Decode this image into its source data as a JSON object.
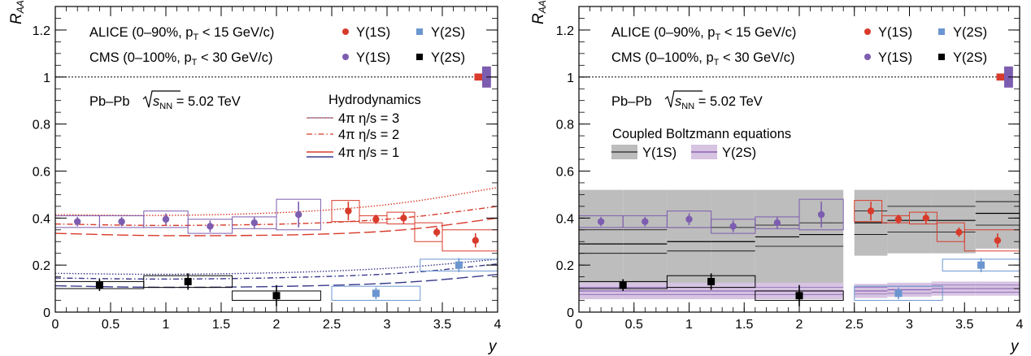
{
  "colors": {
    "alice_1s": "#d83b2b",
    "alice_2s": "#6b96d0",
    "cms_1s": "#7d5db0",
    "cms_2s": "#000000",
    "band_1s": "#bdbdbd",
    "band_2s": "#d6c4e2"
  },
  "left_panel": {
    "ylabel": "R",
    "ylabel_sub": "AA",
    "xlabel": "y",
    "legend": {
      "alice_label": "ALICE (0–90%, p",
      "alice_sub": "T",
      "alice_rest": " < 15 GeV/c)",
      "cms_label": "CMS (0–100%, p",
      "cms_sub": "T",
      "cms_rest": " < 30 GeV/c)",
      "u1s": "Υ(1S)",
      "u2s": "Υ(2S)"
    },
    "system": "Pb–Pb",
    "sqrt_sub": "NN",
    "energy": " = 5.02 TeV",
    "model_title": "Hydrodynamics",
    "models": [
      "4π  η/s = 3",
      "4π  η/s = 2",
      "4π  η/s = 1"
    ]
  },
  "right_panel": {
    "ylabel": "R",
    "ylabel_sub": "AA",
    "xlabel": "y",
    "legend": {
      "alice_label": "ALICE (0–90%, p",
      "alice_sub": "T",
      "alice_rest": " < 15 GeV/c)",
      "cms_label": "CMS (0–100%, p",
      "cms_sub": "T",
      "cms_rest": " < 30 GeV/c)",
      "u1s": "Υ(1S)",
      "u2s": "Υ(2S)"
    },
    "system": "Pb–Pb",
    "sqrt_sub": "NN",
    "energy": " = 5.02 TeV",
    "model_title": "Coupled Boltzmann equations",
    "models": [
      "Υ(1S)",
      "Υ(2S)"
    ]
  },
  "chart_data": [
    {
      "type": "scatter",
      "panel": "left",
      "xlabel": "y",
      "ylabel": "R_AA",
      "xlim": [
        0,
        4
      ],
      "ylim": [
        0,
        1.3
      ],
      "xticks": [
        "0",
        "0.5",
        "1",
        "1.5",
        "2",
        "2.5",
        "3",
        "3.5",
        "4"
      ],
      "yticks": [
        "0",
        "0.2",
        "0.4",
        "0.6",
        "0.8",
        "1",
        "1.2"
      ],
      "reference_line": 1,
      "series": [
        {
          "name": "ALICE Υ(1S)",
          "x": [
            2.65,
            2.9,
            3.15,
            3.45,
            3.8
          ],
          "y": [
            0.43,
            0.395,
            0.4,
            0.34,
            0.305
          ],
          "stat_err": [
            0.04,
            0.02,
            0.025,
            0.02,
            0.03
          ],
          "syst_xlo": [
            2.5,
            2.75,
            3.0,
            3.25,
            3.5
          ],
          "syst_xhi": [
            2.75,
            3.0,
            3.25,
            3.5,
            4.0
          ],
          "syst_err": [
            0.045,
            0.015,
            0.025,
            0.04,
            0.045
          ]
        },
        {
          "name": "ALICE Υ(2S)",
          "x": [
            2.9,
            3.65
          ],
          "y": [
            0.08,
            0.2
          ],
          "stat_err": [
            0.025,
            0.03
          ],
          "syst_xlo": [
            2.5,
            3.3
          ],
          "syst_xhi": [
            3.3,
            4.0
          ],
          "syst_err": [
            0.03,
            0.025
          ]
        },
        {
          "name": "CMS Υ(1S)",
          "x": [
            0.2,
            0.6,
            1.0,
            1.4,
            1.8,
            2.2
          ],
          "y": [
            0.385,
            0.385,
            0.395,
            0.365,
            0.38,
            0.415
          ],
          "stat_err": [
            0.02,
            0.02,
            0.025,
            0.025,
            0.025,
            0.055
          ],
          "syst_xlo": [
            0.0,
            0.4,
            0.8,
            1.2,
            1.6,
            2.0
          ],
          "syst_xhi": [
            0.4,
            0.8,
            1.2,
            1.6,
            2.0,
            2.4
          ],
          "syst_err": [
            0.025,
            0.025,
            0.035,
            0.03,
            0.025,
            0.065
          ]
        },
        {
          "name": "CMS Υ(2S)",
          "x": [
            0.4,
            1.2,
            2.0
          ],
          "y": [
            0.115,
            0.13,
            0.07
          ],
          "stat_err": [
            0.025,
            0.035,
            0.045
          ],
          "syst_xlo": [
            0.0,
            0.8,
            1.6
          ],
          "syst_xhi": [
            0.8,
            1.6,
            2.4
          ],
          "syst_err": [
            0.015,
            0.025,
            0.02
          ]
        }
      ],
      "global_unc": [
        {
          "name": "ALICE",
          "xlo": 3.79,
          "xhi": 3.88,
          "ylo": 0.985,
          "yhi": 1.015
        },
        {
          "name": "CMS",
          "xlo": 3.86,
          "xhi": 3.94,
          "ylo": 0.955,
          "yhi": 1.045
        }
      ],
      "models": [
        {
          "name": "4π η/s = 3",
          "y1S": [
            0.415,
            0.41,
            0.415,
            0.43,
            0.465,
            0.53
          ],
          "y2S": [
            0.165,
            0.16,
            0.163,
            0.172,
            0.19,
            0.225
          ],
          "style": "dotted"
        },
        {
          "name": "4π η/s = 2",
          "y1S": [
            0.375,
            0.368,
            0.37,
            0.378,
            0.4,
            0.45
          ],
          "y2S": [
            0.145,
            0.14,
            0.142,
            0.15,
            0.165,
            0.205
          ],
          "style": "dashdot"
        },
        {
          "name": "4π η/s = 1",
          "y1S": [
            0.335,
            0.325,
            0.325,
            0.33,
            0.348,
            0.4
          ],
          "y2S": [
            0.112,
            0.105,
            0.106,
            0.112,
            0.125,
            0.16
          ],
          "style": "dashed"
        }
      ],
      "model_x": [
        0,
        0.8,
        1.6,
        2.4,
        3.2,
        4.0
      ]
    },
    {
      "type": "scatter",
      "panel": "right",
      "xlabel": "y",
      "ylabel": "R_AA",
      "xlim": [
        0,
        4
      ],
      "ylim": [
        0,
        1.3
      ],
      "xticks": [
        "0",
        "0.5",
        "1",
        "1.5",
        "2",
        "2.5",
        "3",
        "3.5",
        "4"
      ],
      "yticks": [
        "0",
        "0.2",
        "0.4",
        "0.6",
        "0.8",
        "1",
        "1.2"
      ],
      "reference_line": 1,
      "series": [
        {
          "name": "ALICE Υ(1S)",
          "x": [
            2.65,
            2.9,
            3.15,
            3.45,
            3.8
          ],
          "y": [
            0.43,
            0.395,
            0.4,
            0.34,
            0.305
          ],
          "stat_err": [
            0.04,
            0.02,
            0.025,
            0.02,
            0.03
          ],
          "syst_xlo": [
            2.5,
            2.75,
            3.0,
            3.25,
            3.5
          ],
          "syst_xhi": [
            2.75,
            3.0,
            3.25,
            3.5,
            4.0
          ],
          "syst_err": [
            0.045,
            0.015,
            0.025,
            0.04,
            0.045
          ]
        },
        {
          "name": "ALICE Υ(2S)",
          "x": [
            2.9,
            3.65
          ],
          "y": [
            0.08,
            0.2
          ],
          "stat_err": [
            0.025,
            0.03
          ],
          "syst_xlo": [
            2.5,
            3.3
          ],
          "syst_xhi": [
            3.3,
            4.0
          ],
          "syst_err": [
            0.03,
            0.025
          ]
        },
        {
          "name": "CMS Υ(1S)",
          "x": [
            0.2,
            0.6,
            1.0,
            1.4,
            1.8,
            2.2
          ],
          "y": [
            0.385,
            0.385,
            0.395,
            0.365,
            0.38,
            0.415
          ],
          "stat_err": [
            0.02,
            0.02,
            0.025,
            0.025,
            0.025,
            0.055
          ],
          "syst_xlo": [
            0.0,
            0.4,
            0.8,
            1.2,
            1.6,
            2.0
          ],
          "syst_xhi": [
            0.4,
            0.8,
            1.2,
            1.6,
            2.0,
            2.4
          ],
          "syst_err": [
            0.025,
            0.025,
            0.035,
            0.03,
            0.025,
            0.065
          ]
        },
        {
          "name": "CMS Υ(2S)",
          "x": [
            0.4,
            1.2,
            2.0
          ],
          "y": [
            0.115,
            0.13,
            0.07
          ],
          "stat_err": [
            0.025,
            0.035,
            0.045
          ],
          "syst_xlo": [
            0.0,
            0.8,
            1.6
          ],
          "syst_xhi": [
            0.8,
            1.6,
            2.4
          ],
          "syst_err": [
            0.015,
            0.025,
            0.02
          ]
        }
      ],
      "global_unc": [
        {
          "name": "ALICE",
          "xlo": 3.79,
          "xhi": 3.88,
          "ylo": 0.985,
          "yhi": 1.015
        },
        {
          "name": "CMS",
          "xlo": 3.86,
          "xhi": 3.94,
          "ylo": 0.955,
          "yhi": 1.045
        }
      ],
      "bands": [
        {
          "name": "Υ(1S)",
          "xlo": [
            0.0,
            0.4,
            0.8,
            1.2,
            1.6,
            2.0,
            2.5,
            2.8,
            3.2,
            3.6
          ],
          "xhi": [
            0.4,
            0.8,
            1.2,
            1.6,
            2.0,
            2.4,
            2.8,
            3.2,
            3.6,
            4.0
          ],
          "central": [
            0.29,
            0.29,
            0.3,
            0.3,
            0.32,
            0.33,
            0.38,
            0.39,
            0.39,
            0.42
          ],
          "lo": [
            0.07,
            0.07,
            0.07,
            0.08,
            0.08,
            0.1,
            0.24,
            0.25,
            0.25,
            0.27
          ],
          "hi": [
            0.52,
            0.52,
            0.52,
            0.52,
            0.52,
            0.52,
            0.52,
            0.52,
            0.52,
            0.52
          ],
          "inner_lo": [
            0.25,
            0.25,
            0.26,
            0.26,
            0.28,
            0.28,
            0.33,
            0.34,
            0.34,
            0.37
          ],
          "inner_hi": [
            0.35,
            0.35,
            0.36,
            0.36,
            0.37,
            0.38,
            0.43,
            0.45,
            0.45,
            0.47
          ]
        },
        {
          "name": "Υ(2S)",
          "xlo": [
            0.0,
            0.4,
            0.8,
            1.2,
            1.6,
            2.0,
            2.5,
            2.8,
            3.2,
            3.6
          ],
          "xhi": [
            0.4,
            0.8,
            1.2,
            1.6,
            2.0,
            2.4,
            2.8,
            3.2,
            3.6,
            4.0
          ],
          "central": [
            0.09,
            0.09,
            0.09,
            0.09,
            0.09,
            0.09,
            0.09,
            0.095,
            0.1,
            0.1
          ],
          "lo": [
            0.055,
            0.055,
            0.055,
            0.055,
            0.055,
            0.055,
            0.06,
            0.065,
            0.07,
            0.07
          ],
          "hi": [
            0.125,
            0.125,
            0.125,
            0.125,
            0.125,
            0.125,
            0.12,
            0.125,
            0.13,
            0.13
          ],
          "inner_lo": [
            0.075,
            0.075,
            0.075,
            0.075,
            0.075,
            0.075,
            0.077,
            0.08,
            0.085,
            0.085
          ],
          "inner_hi": [
            0.105,
            0.105,
            0.105,
            0.105,
            0.105,
            0.105,
            0.105,
            0.11,
            0.115,
            0.115
          ]
        }
      ]
    }
  ]
}
